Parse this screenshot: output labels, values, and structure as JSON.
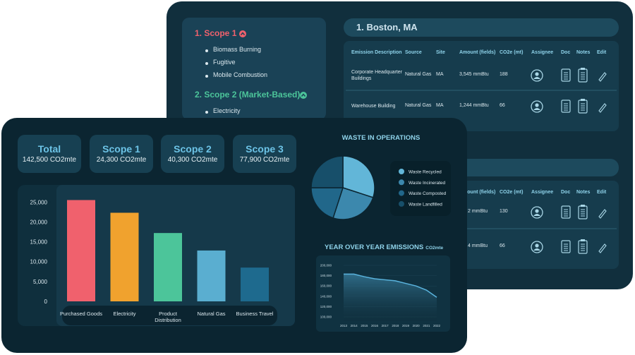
{
  "scope_panel": {
    "sections": [
      {
        "title": "1. Scope 1",
        "color": "#f0616d",
        "items": [
          "Biomass Burning",
          "Fugitive",
          "Mobile Combustion"
        ]
      },
      {
        "title": "2. Scope 2 (Market-Based)",
        "color": "#4cc59a",
        "items": [
          "Electricity"
        ]
      }
    ]
  },
  "locations": [
    {
      "title": "1. Boston, MA",
      "columns": [
        "Emission Description",
        "Source",
        "Site",
        "Amount (fields)",
        "CO2e (mt)",
        "Assignee",
        "Doc",
        "Notes",
        "Edit"
      ],
      "rows": [
        [
          "Corporate Headquarter Buildings",
          "Natural Gas",
          "MA",
          "3,545 mmBtu",
          "188"
        ],
        [
          "Warehouse Building",
          "Natural Gas",
          "MA",
          "1,244 mmBtu",
          "66"
        ]
      ]
    },
    {
      "columns": [
        "Amount (fields)",
        "CO2e (mt)",
        "Assignee",
        "Doc",
        "Notes",
        "Edit"
      ],
      "rows": [
        [
          "2 mmBtu",
          "130"
        ],
        [
          "4 mmBtu",
          "66"
        ]
      ]
    }
  ],
  "summary_cards": [
    {
      "title": "Total",
      "value": "142,500 CO2mte"
    },
    {
      "title": "Scope 1",
      "value": "24,300 CO2mte"
    },
    {
      "title": "Scope 2",
      "value": "40,300 CO2mte"
    },
    {
      "title": "Scope 3",
      "value": "77,900 CO2mte"
    }
  ],
  "chart_data": [
    {
      "type": "bar",
      "categories": [
        "Purchased Goods",
        "Electricity",
        "Product Distribution",
        "Natural Gas",
        "Business Travel"
      ],
      "values": [
        25500,
        22300,
        17200,
        12800,
        8500
      ],
      "colors": [
        "#f0616d",
        "#f0a22e",
        "#4cc59a",
        "#5aaed0",
        "#1e6a8e"
      ],
      "ylim": [
        0,
        27000
      ],
      "yticks": [
        0,
        {
          "value": 5000,
          "label": "5,000"
        },
        {
          "value": 10000,
          "label": "10,000"
        },
        {
          "value": 15000,
          "label": "15,000"
        },
        {
          "value": 20000,
          "label": "20,000"
        },
        {
          "value": 25000,
          "label": "25,000"
        }
      ]
    },
    {
      "type": "pie",
      "title": "WASTE IN OPERATIONS",
      "categories": [
        "Waste Recycled",
        "Waste Incinerated",
        "Waste Composted",
        "Waste Landfilled"
      ],
      "values": [
        30,
        25,
        20,
        25
      ],
      "colors": [
        "#62b6d8",
        "#3c88ad",
        "#21678a",
        "#174f6a"
      ]
    },
    {
      "type": "line",
      "title": "YEAR OVER YEAR EMISSIONS",
      "subtitle": "CO2mte",
      "x": [
        2013,
        2014,
        2015,
        2016,
        2017,
        2018,
        2019,
        2020,
        2021,
        2022
      ],
      "series": [
        {
          "color": "#5ab4de",
          "values": [
            183000,
            183000,
            178000,
            174000,
            172000,
            170000,
            165000,
            160000,
            152000,
            138000
          ]
        }
      ],
      "xlim": [
        2013,
        2022
      ],
      "ylim": [
        100000,
        200000
      ],
      "yticks": [
        {
          "value": 100000,
          "label": "100,000"
        },
        {
          "value": 120000,
          "label": "120,000"
        },
        {
          "value": 140000,
          "label": "140,000"
        },
        {
          "value": 160000,
          "label": "160,000"
        },
        {
          "value": 180000,
          "label": "180,000"
        },
        {
          "value": 200000,
          "label": "200,000"
        }
      ]
    }
  ]
}
